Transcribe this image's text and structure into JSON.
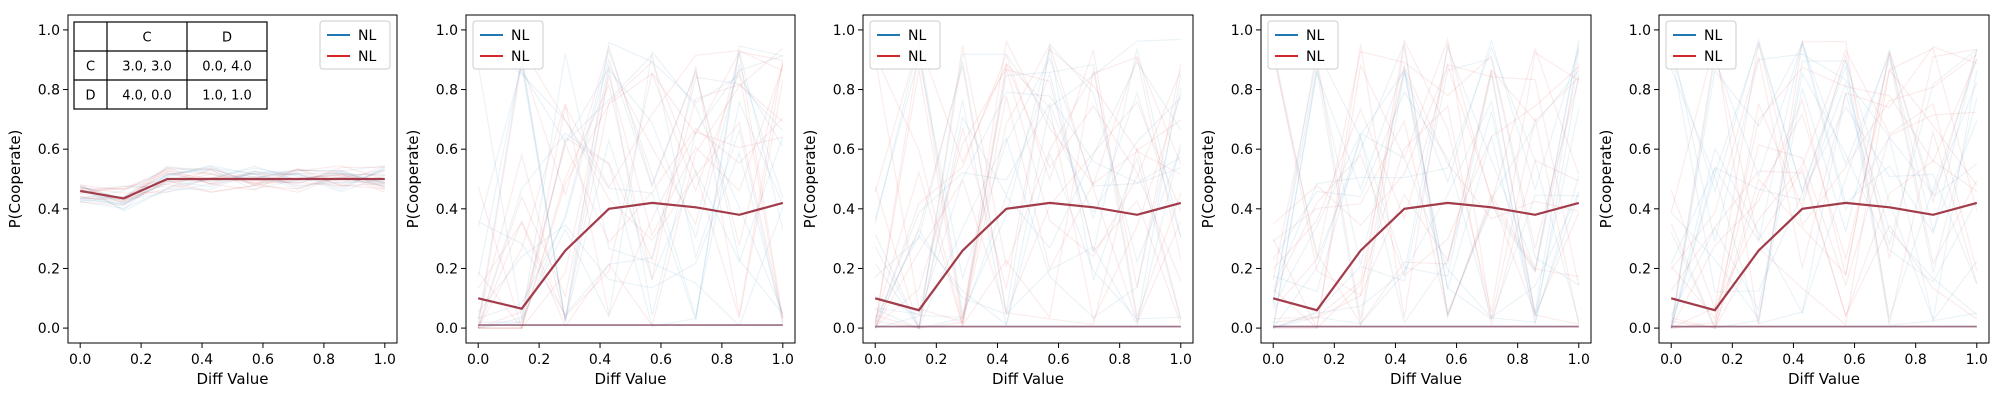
{
  "colors": {
    "blue": "#1f77b4",
    "red": "#d62728",
    "mean": "#a23b4a",
    "axis": "#000000"
  },
  "payoff_table": {
    "col_headers": [
      "",
      "C",
      "D"
    ],
    "rows": [
      {
        "label": "C",
        "cells": [
          "3.0, 3.0",
          "0.0, 4.0"
        ]
      },
      {
        "label": "D",
        "cells": [
          "4.0, 0.0",
          "1.0, 1.0"
        ]
      }
    ]
  },
  "chart_data": [
    {
      "type": "line",
      "xlabel": "Diff Value",
      "ylabel": "P(Cooperate)",
      "xlim": [
        -0.04,
        1.04
      ],
      "ylim": [
        -0.05,
        1.05
      ],
      "xticks": [
        0.0,
        0.2,
        0.4,
        0.6,
        0.8,
        1.0
      ],
      "xtick_labels": [
        "0.0",
        "0.2",
        "0.4",
        "0.6",
        "0.8",
        "1.0"
      ],
      "yticks": [
        0.0,
        0.2,
        0.4,
        0.6,
        0.8,
        1.0
      ],
      "ytick_labels": [
        "0.0",
        "0.2",
        "0.4",
        "0.6",
        "0.8",
        "1.0"
      ],
      "legend": {
        "position": "top-right",
        "entries": [
          {
            "label": "NL",
            "color": "#1f77b4"
          },
          {
            "label": "NL",
            "color": "#d62728"
          }
        ]
      },
      "x": [
        0.0,
        0.143,
        0.286,
        0.429,
        0.571,
        0.714,
        0.857,
        1.0
      ],
      "mean_series": [
        0.46,
        0.435,
        0.5,
        0.5,
        0.5,
        0.5,
        0.5,
        0.5
      ],
      "has_table": true,
      "background_style": "flat"
    },
    {
      "type": "line",
      "xlabel": "Diff Value",
      "ylabel": "P(Cooperate)",
      "xlim": [
        -0.04,
        1.04
      ],
      "ylim": [
        -0.05,
        1.05
      ],
      "xticks": [
        0.0,
        0.2,
        0.4,
        0.6,
        0.8,
        1.0
      ],
      "xtick_labels": [
        "0.0",
        "0.2",
        "0.4",
        "0.6",
        "0.8",
        "1.0"
      ],
      "yticks": [
        0.0,
        0.2,
        0.4,
        0.6,
        0.8,
        1.0
      ],
      "ytick_labels": [
        "0.0",
        "0.2",
        "0.4",
        "0.6",
        "0.8",
        "1.0"
      ],
      "legend": {
        "position": "top-left",
        "entries": [
          {
            "label": "NL",
            "color": "#1f77b4"
          },
          {
            "label": "NL",
            "color": "#d62728"
          }
        ]
      },
      "x": [
        0.0,
        0.143,
        0.286,
        0.429,
        0.571,
        0.714,
        0.857,
        1.0
      ],
      "mean_series": [
        0.1,
        0.065,
        0.26,
        0.4,
        0.42,
        0.405,
        0.38,
        0.42
      ],
      "flat_series": [
        0.01,
        0.01,
        0.01,
        0.01,
        0.01,
        0.01,
        0.01,
        0.01
      ],
      "has_table": false,
      "background_style": "spiky"
    },
    {
      "type": "line",
      "xlabel": "Diff Value",
      "ylabel": "P(Cooperate)",
      "xlim": [
        -0.04,
        1.04
      ],
      "ylim": [
        -0.05,
        1.05
      ],
      "xticks": [
        0.0,
        0.2,
        0.4,
        0.6,
        0.8,
        1.0
      ],
      "xtick_labels": [
        "0.0",
        "0.2",
        "0.4",
        "0.6",
        "0.8",
        "1.0"
      ],
      "yticks": [
        0.0,
        0.2,
        0.4,
        0.6,
        0.8,
        1.0
      ],
      "ytick_labels": [
        "0.0",
        "0.2",
        "0.4",
        "0.6",
        "0.8",
        "1.0"
      ],
      "legend": {
        "position": "top-left",
        "entries": [
          {
            "label": "NL",
            "color": "#1f77b4"
          },
          {
            "label": "NL",
            "color": "#d62728"
          }
        ]
      },
      "x": [
        0.0,
        0.143,
        0.286,
        0.429,
        0.571,
        0.714,
        0.857,
        1.0
      ],
      "mean_series": [
        0.1,
        0.06,
        0.26,
        0.4,
        0.42,
        0.405,
        0.38,
        0.42
      ],
      "flat_series": [
        0.005,
        0.005,
        0.005,
        0.005,
        0.005,
        0.005,
        0.005,
        0.005
      ],
      "has_table": false,
      "background_style": "spiky"
    },
    {
      "type": "line",
      "xlabel": "Diff Value",
      "ylabel": "P(Cooperate)",
      "xlim": [
        -0.04,
        1.04
      ],
      "ylim": [
        -0.05,
        1.05
      ],
      "xticks": [
        0.0,
        0.2,
        0.4,
        0.6,
        0.8,
        1.0
      ],
      "xtick_labels": [
        "0.0",
        "0.2",
        "0.4",
        "0.6",
        "0.8",
        "1.0"
      ],
      "yticks": [
        0.0,
        0.2,
        0.4,
        0.6,
        0.8,
        1.0
      ],
      "ytick_labels": [
        "0.0",
        "0.2",
        "0.4",
        "0.6",
        "0.8",
        "1.0"
      ],
      "legend": {
        "position": "top-left",
        "entries": [
          {
            "label": "NL",
            "color": "#1f77b4"
          },
          {
            "label": "NL",
            "color": "#d62728"
          }
        ]
      },
      "x": [
        0.0,
        0.143,
        0.286,
        0.429,
        0.571,
        0.714,
        0.857,
        1.0
      ],
      "mean_series": [
        0.1,
        0.06,
        0.26,
        0.4,
        0.42,
        0.405,
        0.38,
        0.42
      ],
      "flat_series": [
        0.005,
        0.005,
        0.005,
        0.005,
        0.005,
        0.005,
        0.005,
        0.005
      ],
      "has_table": false,
      "background_style": "spiky"
    },
    {
      "type": "line",
      "xlabel": "Diff Value",
      "ylabel": "P(Cooperate)",
      "xlim": [
        -0.04,
        1.04
      ],
      "ylim": [
        -0.05,
        1.05
      ],
      "xticks": [
        0.0,
        0.2,
        0.4,
        0.6,
        0.8,
        1.0
      ],
      "xtick_labels": [
        "0.0",
        "0.2",
        "0.4",
        "0.6",
        "0.8",
        "1.0"
      ],
      "yticks": [
        0.0,
        0.2,
        0.4,
        0.6,
        0.8,
        1.0
      ],
      "ytick_labels": [
        "0.0",
        "0.2",
        "0.4",
        "0.6",
        "0.8",
        "1.0"
      ],
      "legend": {
        "position": "top-left",
        "entries": [
          {
            "label": "NL",
            "color": "#1f77b4"
          },
          {
            "label": "NL",
            "color": "#d62728"
          }
        ]
      },
      "x": [
        0.0,
        0.143,
        0.286,
        0.429,
        0.571,
        0.714,
        0.857,
        1.0
      ],
      "mean_series": [
        0.1,
        0.06,
        0.26,
        0.4,
        0.42,
        0.405,
        0.38,
        0.42
      ],
      "flat_series": [
        0.005,
        0.005,
        0.005,
        0.005,
        0.005,
        0.005,
        0.005,
        0.005
      ],
      "has_table": false,
      "background_style": "spiky"
    }
  ]
}
